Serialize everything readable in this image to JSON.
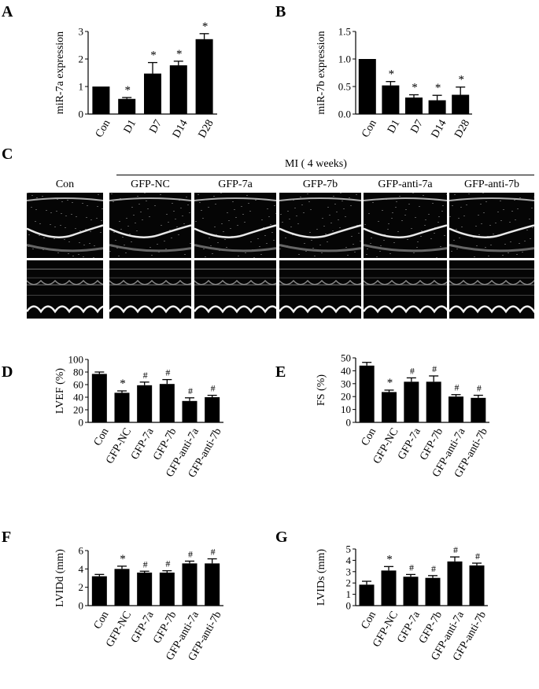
{
  "panels": {
    "A": "A",
    "B": "B",
    "C": "C",
    "D": "D",
    "E": "E",
    "F": "F",
    "G": "G"
  },
  "echo": {
    "mi_title": "MI ( 4 weeks)",
    "groups": [
      "Con",
      "GFP-NC",
      "GFP-7a",
      "GFP-7b",
      "GFP-anti-7a",
      "GFP-anti-7b"
    ]
  },
  "chart_data": [
    {
      "panel": "A",
      "type": "bar",
      "ylabel": "miR-7a expression",
      "xlabel": "",
      "categories": [
        "Con",
        "D1",
        "D7",
        "D14",
        "D28"
      ],
      "values": [
        1.0,
        0.55,
        1.47,
        1.77,
        2.72
      ],
      "errors": [
        0.0,
        0.05,
        0.4,
        0.15,
        0.2
      ],
      "marks": [
        "",
        "*",
        "*",
        "*",
        "*"
      ],
      "ylim": [
        0,
        3
      ],
      "yticks": [
        "0",
        "1",
        "2",
        "3"
      ],
      "ytick_values": [
        0,
        1,
        2,
        3
      ]
    },
    {
      "panel": "B",
      "type": "bar",
      "ylabel": "miR-7b expression",
      "xlabel": "",
      "categories": [
        "Con",
        "D1",
        "D7",
        "D14",
        "D28"
      ],
      "values": [
        1.0,
        0.52,
        0.3,
        0.25,
        0.35
      ],
      "errors": [
        0.0,
        0.07,
        0.05,
        0.09,
        0.14
      ],
      "marks": [
        "",
        "*",
        "*",
        "*",
        "*"
      ],
      "ylim": [
        0,
        1.5
      ],
      "yticks": [
        "0.0",
        "0.5",
        "1.0",
        "1.5"
      ],
      "ytick_values": [
        0,
        0.5,
        1.0,
        1.5
      ]
    },
    {
      "panel": "D",
      "type": "bar",
      "ylabel": "LVEF (%)",
      "xlabel": "",
      "categories": [
        "Con",
        "GFP-NC",
        "GFP-7a",
        "GFP-7b",
        "GFP-anti-7a",
        "GFP-anti-7b"
      ],
      "values": [
        77,
        47,
        59,
        61,
        34,
        40
      ],
      "errors": [
        3,
        3,
        5,
        7,
        5,
        3
      ],
      "marks": [
        "",
        "*",
        "#",
        "#",
        "#",
        "#"
      ],
      "ylim": [
        0,
        100
      ],
      "yticks": [
        "0",
        "20",
        "40",
        "60",
        "80",
        "100"
      ],
      "ytick_values": [
        0,
        20,
        40,
        60,
        80,
        100
      ]
    },
    {
      "panel": "E",
      "type": "bar",
      "ylabel": "FS (%)",
      "xlabel": "",
      "categories": [
        "Con",
        "GFP-NC",
        "GFP-7a",
        "GFP-7b",
        "GFP-anti-7a",
        "GFP-anti-7b"
      ],
      "values": [
        44,
        23.5,
        31.5,
        31.5,
        20,
        19
      ],
      "errors": [
        2.5,
        1.5,
        3,
        4.5,
        1.5,
        2
      ],
      "marks": [
        "",
        "*",
        "#",
        "#",
        "#",
        "#"
      ],
      "ylim": [
        0,
        50
      ],
      "yticks": [
        "0",
        "10",
        "20",
        "30",
        "40",
        "50"
      ],
      "ytick_values": [
        0,
        10,
        20,
        30,
        40,
        50
      ]
    },
    {
      "panel": "F",
      "type": "bar",
      "ylabel": "LVIDd (mm)",
      "xlabel": "",
      "categories": [
        "Con",
        "GFP-NC",
        "GFP-7a",
        "GFP-7b",
        "GFP-anti-7a",
        "GFP-anti-7b"
      ],
      "values": [
        3.2,
        4.0,
        3.6,
        3.6,
        4.6,
        4.6
      ],
      "errors": [
        0.2,
        0.3,
        0.15,
        0.2,
        0.25,
        0.5
      ],
      "marks": [
        "",
        "*",
        "#",
        "#",
        "#",
        "#"
      ],
      "ylim": [
        0,
        6
      ],
      "yticks": [
        "0",
        "2",
        "4",
        "6"
      ],
      "ytick_values": [
        0,
        2,
        4,
        6
      ]
    },
    {
      "panel": "G",
      "type": "bar",
      "ylabel": "LVIDs (mm)",
      "xlabel": "",
      "categories": [
        "Con",
        "GFP-NC",
        "GFP-7a",
        "GFP-7b",
        "GFP-anti-7a",
        "GFP-anti-7b"
      ],
      "values": [
        1.85,
        3.1,
        2.55,
        2.45,
        3.9,
        3.55
      ],
      "errors": [
        0.3,
        0.35,
        0.2,
        0.2,
        0.4,
        0.2
      ],
      "marks": [
        "",
        "*",
        "#",
        "#",
        "#",
        "#"
      ],
      "ylim": [
        0,
        5
      ],
      "yticks": [
        "0",
        "1",
        "2",
        "3",
        "4",
        "5"
      ],
      "ytick_values": [
        0,
        1,
        2,
        3,
        4,
        5
      ]
    }
  ]
}
